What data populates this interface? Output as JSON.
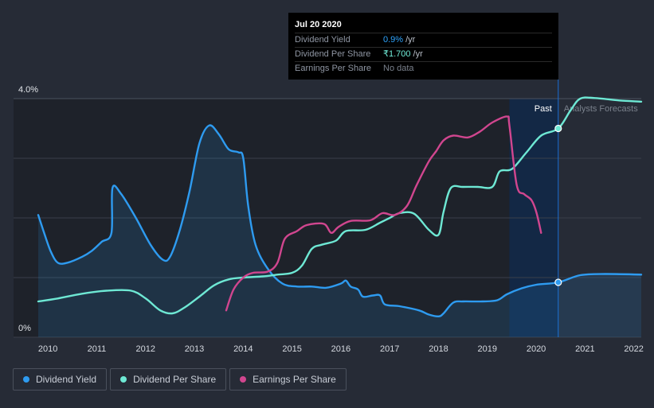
{
  "tooltip": {
    "date": "Jul 20 2020",
    "rows": [
      {
        "label": "Dividend Yield",
        "value": "0.9%",
        "unit": "/yr"
      },
      {
        "label": "Dividend Per Share",
        "value": "₹1.700",
        "unit": "/yr"
      },
      {
        "label": "Earnings Per Share",
        "value": "No data",
        "unit": ""
      }
    ]
  },
  "legend": [
    {
      "label": "Dividend Yield",
      "color": "#2e9bf0"
    },
    {
      "label": "Dividend Per Share",
      "color": "#6ee8d4"
    },
    {
      "label": "Earnings Per Share",
      "color": "#d1468f"
    }
  ],
  "chart_data": {
    "type": "line",
    "x_ticks": [
      "2010",
      "2011",
      "2012",
      "2013",
      "2014",
      "2015",
      "2016",
      "2017",
      "2018",
      "2019",
      "2020",
      "2021",
      "2022"
    ],
    "y_ticks": [
      "4.0%",
      "0%"
    ],
    "ylim": [
      0,
      4.0
    ],
    "xlim": [
      2009.9,
      2022.25
    ],
    "past_label": "Past",
    "forecast_label": "Analysts Forecasts",
    "forecast_start": 2020.55,
    "highlight_start": 2019.55,
    "series": [
      {
        "name": "Dividend Yield",
        "unit": "%",
        "color": "#2e9bf0",
        "fill": true,
        "points": [
          [
            2009.9,
            2.05
          ],
          [
            2010.0,
            1.8
          ],
          [
            2010.15,
            1.45
          ],
          [
            2010.3,
            1.25
          ],
          [
            2010.5,
            1.25
          ],
          [
            2010.8,
            1.35
          ],
          [
            2011.0,
            1.45
          ],
          [
            2011.2,
            1.6
          ],
          [
            2011.4,
            1.75
          ],
          [
            2011.42,
            2.5
          ],
          [
            2011.6,
            2.4
          ],
          [
            2011.9,
            2.0
          ],
          [
            2012.2,
            1.55
          ],
          [
            2012.45,
            1.3
          ],
          [
            2012.6,
            1.35
          ],
          [
            2012.8,
            1.8
          ],
          [
            2013.0,
            2.45
          ],
          [
            2013.2,
            3.25
          ],
          [
            2013.4,
            3.55
          ],
          [
            2013.6,
            3.4
          ],
          [
            2013.8,
            3.15
          ],
          [
            2014.0,
            3.1
          ],
          [
            2014.1,
            3.0
          ],
          [
            2014.2,
            2.2
          ],
          [
            2014.35,
            1.55
          ],
          [
            2014.6,
            1.15
          ],
          [
            2014.9,
            0.9
          ],
          [
            2015.2,
            0.85
          ],
          [
            2015.5,
            0.85
          ],
          [
            2015.8,
            0.83
          ],
          [
            2016.1,
            0.9
          ],
          [
            2016.2,
            0.95
          ],
          [
            2016.3,
            0.85
          ],
          [
            2016.45,
            0.8
          ],
          [
            2016.55,
            0.68
          ],
          [
            2016.75,
            0.7
          ],
          [
            2016.9,
            0.7
          ],
          [
            2017.0,
            0.55
          ],
          [
            2017.3,
            0.52
          ],
          [
            2017.7,
            0.45
          ],
          [
            2017.9,
            0.38
          ],
          [
            2018.1,
            0.35
          ],
          [
            2018.2,
            0.4
          ],
          [
            2018.4,
            0.58
          ],
          [
            2018.6,
            0.6
          ],
          [
            2019.0,
            0.6
          ],
          [
            2019.3,
            0.62
          ],
          [
            2019.5,
            0.72
          ],
          [
            2019.8,
            0.82
          ],
          [
            2020.1,
            0.88
          ],
          [
            2020.55,
            0.92
          ],
          [
            2021.0,
            1.04
          ],
          [
            2021.5,
            1.06
          ],
          [
            2022.25,
            1.05
          ]
        ]
      },
      {
        "name": "Dividend Per Share",
        "unit": "₹",
        "color": "#6ee8d4",
        "fill": false,
        "points": [
          [
            2009.9,
            0.6
          ],
          [
            2010.3,
            0.65
          ],
          [
            2010.8,
            0.73
          ],
          [
            2011.3,
            0.78
          ],
          [
            2011.8,
            0.78
          ],
          [
            2012.1,
            0.65
          ],
          [
            2012.4,
            0.45
          ],
          [
            2012.65,
            0.4
          ],
          [
            2012.9,
            0.5
          ],
          [
            2013.2,
            0.68
          ],
          [
            2013.5,
            0.87
          ],
          [
            2013.8,
            0.97
          ],
          [
            2014.1,
            1.0
          ],
          [
            2014.5,
            1.02
          ],
          [
            2014.8,
            1.05
          ],
          [
            2015.1,
            1.08
          ],
          [
            2015.3,
            1.2
          ],
          [
            2015.5,
            1.48
          ],
          [
            2015.7,
            1.55
          ],
          [
            2016.0,
            1.62
          ],
          [
            2016.2,
            1.78
          ],
          [
            2016.6,
            1.8
          ],
          [
            2016.9,
            1.92
          ],
          [
            2017.1,
            2.0
          ],
          [
            2017.3,
            2.08
          ],
          [
            2017.6,
            2.07
          ],
          [
            2017.9,
            1.8
          ],
          [
            2018.1,
            1.72
          ],
          [
            2018.2,
            2.1
          ],
          [
            2018.35,
            2.5
          ],
          [
            2018.6,
            2.52
          ],
          [
            2018.9,
            2.52
          ],
          [
            2019.2,
            2.52
          ],
          [
            2019.35,
            2.78
          ],
          [
            2019.6,
            2.82
          ],
          [
            2019.9,
            3.1
          ],
          [
            2020.2,
            3.38
          ],
          [
            2020.55,
            3.5
          ],
          [
            2020.8,
            3.8
          ],
          [
            2021.0,
            4.0
          ],
          [
            2021.3,
            4.01
          ],
          [
            2021.8,
            3.97
          ],
          [
            2022.25,
            3.95
          ]
        ]
      },
      {
        "name": "Earnings Per Share",
        "unit": "₹",
        "color": "#d1468f",
        "fill": false,
        "points": [
          [
            2013.75,
            0.45
          ],
          [
            2013.9,
            0.8
          ],
          [
            2014.1,
            1.0
          ],
          [
            2014.3,
            1.08
          ],
          [
            2014.6,
            1.1
          ],
          [
            2014.8,
            1.25
          ],
          [
            2014.95,
            1.65
          ],
          [
            2015.2,
            1.78
          ],
          [
            2015.4,
            1.88
          ],
          [
            2015.75,
            1.9
          ],
          [
            2015.9,
            1.75
          ],
          [
            2016.05,
            1.85
          ],
          [
            2016.3,
            1.95
          ],
          [
            2016.7,
            1.96
          ],
          [
            2016.95,
            2.08
          ],
          [
            2017.2,
            2.05
          ],
          [
            2017.45,
            2.2
          ],
          [
            2017.65,
            2.55
          ],
          [
            2017.9,
            2.95
          ],
          [
            2018.05,
            3.12
          ],
          [
            2018.2,
            3.3
          ],
          [
            2018.4,
            3.38
          ],
          [
            2018.7,
            3.35
          ],
          [
            2018.95,
            3.45
          ],
          [
            2019.2,
            3.6
          ],
          [
            2019.5,
            3.7
          ],
          [
            2019.55,
            3.55
          ],
          [
            2019.7,
            2.55
          ],
          [
            2019.85,
            2.4
          ],
          [
            2020.0,
            2.3
          ],
          [
            2020.1,
            2.1
          ],
          [
            2020.2,
            1.75
          ]
        ]
      }
    ],
    "markers": [
      {
        "series": "Dividend Per Share",
        "x": 2020.55,
        "y": 3.5
      },
      {
        "series": "Dividend Yield",
        "x": 2020.55,
        "y": 0.92
      }
    ]
  }
}
